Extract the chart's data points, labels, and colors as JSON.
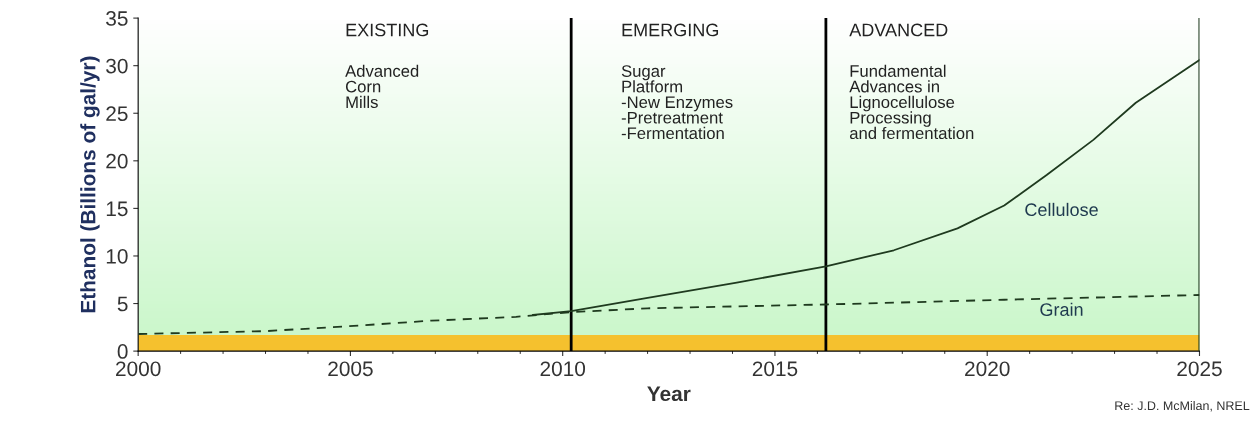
{
  "chart_data": {
    "type": "line",
    "xlabel": "Year",
    "ylabel": "Ethanol (Billions of gal/yr)",
    "xlim": [
      2000,
      2025
    ],
    "xticks": [
      2000,
      2005,
      2010,
      2015,
      2020,
      2025
    ],
    "ylim": [
      0,
      35
    ],
    "yticks": [
      0,
      5,
      10,
      15,
      20,
      25,
      30,
      35
    ],
    "grid": false,
    "legend": false,
    "series": [
      {
        "name": "Grain",
        "color": "#1f3a1f",
        "line_style": "dashed",
        "x": [
          2000,
          2001,
          2003,
          2004.9,
          2006.9,
          2008.9,
          2010.2,
          2012,
          2014.1,
          2016.2,
          2020.4,
          2025
        ],
        "values": [
          1.8,
          1.9,
          2.1,
          2.6,
          3.2,
          3.6,
          4.1,
          4.5,
          4.7,
          4.9,
          5.4,
          5.9
        ]
      },
      {
        "name": "Cellulose",
        "color": "#1f3a1f",
        "line_style": "solid",
        "x": [
          2009.3,
          2010.2,
          2012,
          2014.1,
          2016.2,
          2017.8,
          2019.3,
          2020.4,
          2021.4,
          2022.5,
          2023.5,
          2025
        ],
        "values": [
          3.8,
          4.2,
          5.6,
          7.2,
          8.9,
          10.6,
          12.9,
          15.3,
          18.5,
          22.2,
          26.1,
          30.6
        ]
      }
    ],
    "bands": [
      {
        "axis": "y",
        "from": 0,
        "to": 1.7,
        "color": "#f5c12e"
      }
    ],
    "ref_lines": [
      {
        "axis": "x",
        "value": 2010.2,
        "color": "#000000"
      },
      {
        "axis": "x",
        "value": 2016.2,
        "color": "#000000"
      },
      {
        "axis": "x",
        "value": 2025,
        "color": "#1f3a1f"
      }
    ],
    "annotations": [
      "EXISTING",
      "Advanced\nCorn\nMills",
      "EMERGING",
      "Sugar\nPlatform\n-New Enzymes\n-Pretreatment\n-Fermentation",
      "ADVANCED",
      "Fundamental\nAdvances in\nLignocellulose\nProcessing\nand fermentation",
      "Re: J.D. McMilan, NREL"
    ]
  }
}
